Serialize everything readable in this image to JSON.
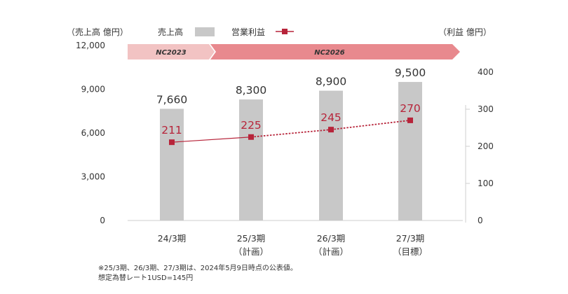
{
  "legend": {
    "left_unit": "（売上高 億円）",
    "bar_label": "売上高",
    "line_label": "営業利益",
    "right_unit": "（利益 億円）"
  },
  "banners": {
    "first": "NC2023",
    "second": "NC2026"
  },
  "notes": [
    "※25/3期、26/3期、27/3期は、2024年5月9日時点の公表値。",
    "想定為替レート1USD=145円"
  ],
  "colors": {
    "bar": "#c8c8c8",
    "line": "#b7243a",
    "banner_light": "#f2c3c3",
    "banner_dark": "#e8898e"
  },
  "chart_data": {
    "type": "bar",
    "categories": [
      [
        "24/3期"
      ],
      [
        "25/3期",
        "（計画）"
      ],
      [
        "26/3期",
        "（計画）"
      ],
      [
        "27/3期",
        "（目標）"
      ]
    ],
    "series": [
      {
        "name": "売上高",
        "axis": "left",
        "type": "bar",
        "values": [
          7660,
          8300,
          8900,
          9500
        ],
        "labels": [
          "7,660",
          "8,300",
          "8,900",
          "9,500"
        ]
      },
      {
        "name": "営業利益",
        "axis": "right",
        "type": "line",
        "values": [
          211,
          225,
          245,
          270
        ],
        "labels": [
          "211",
          "225",
          "245",
          "270"
        ],
        "dashed_from_index": 1
      }
    ],
    "y_left": {
      "min": 0,
      "max": 12000,
      "ticks": [
        "0",
        "3,000",
        "6,000",
        "9,000",
        "12,000"
      ],
      "tick_values": [
        0,
        3000,
        6000,
        9000,
        12000
      ]
    },
    "y_right": {
      "min": 0,
      "max": 400,
      "ticks": [
        "0",
        "100",
        "200",
        "300",
        "400"
      ],
      "tick_values": [
        0,
        100,
        200,
        300,
        400
      ]
    },
    "grid": false,
    "legend_position": "top"
  }
}
